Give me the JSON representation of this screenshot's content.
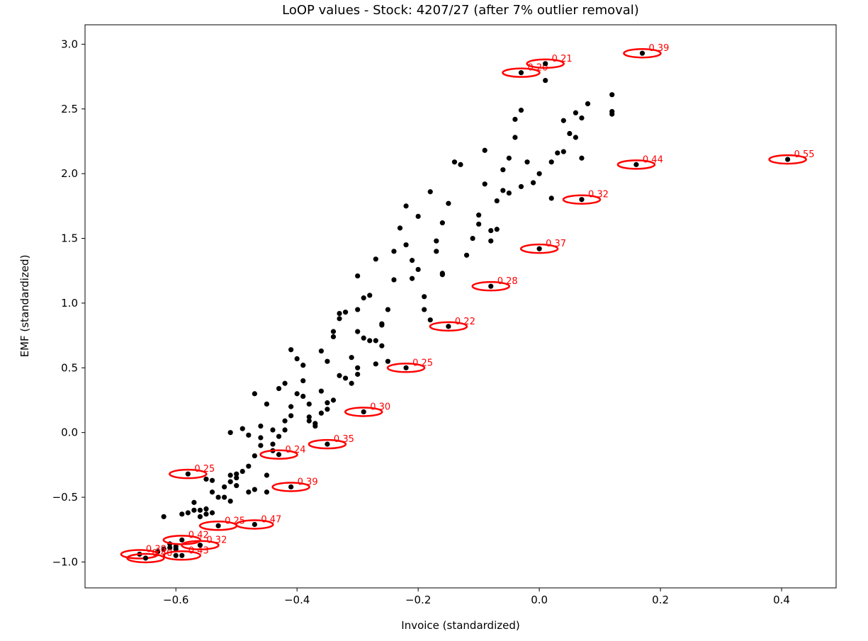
{
  "colors": {
    "points": "#000000",
    "outlier_ring": "#ff0000",
    "outlier_label": "#ff0000"
  },
  "chart_data": {
    "type": "scatter",
    "title": "LoOP values - Stock: 4207/27 (after 7% outlier removal)",
    "xlabel": "Invoice (standardized)",
    "ylabel": "EMF (standardized)",
    "xlim": [
      -0.75,
      0.49
    ],
    "ylim": [
      -1.2,
      3.15
    ],
    "xticks": [
      -0.6,
      -0.4,
      -0.2,
      0.0,
      0.2,
      0.4
    ],
    "xtick_labels": [
      "−0.6",
      "−0.4",
      "−0.2",
      "0.0",
      "0.2",
      "0.4"
    ],
    "yticks": [
      -1.0,
      -0.5,
      0.0,
      0.5,
      1.0,
      1.5,
      2.0,
      2.5,
      3.0
    ],
    "ytick_labels": [
      "−1.0",
      "−0.5",
      "0.0",
      "0.5",
      "1.0",
      "1.5",
      "2.0",
      "2.5",
      "3.0"
    ],
    "grid": false,
    "points": [
      [
        -0.62,
        -0.65
      ],
      [
        -0.61,
        -0.86
      ],
      [
        -0.6,
        -0.9
      ],
      [
        -0.6,
        -0.88
      ],
      [
        -0.59,
        -0.63
      ],
      [
        -0.58,
        -0.62
      ],
      [
        -0.57,
        -0.6
      ],
      [
        -0.57,
        -0.54
      ],
      [
        -0.56,
        -0.6
      ],
      [
        -0.56,
        -0.65
      ],
      [
        -0.55,
        -0.63
      ],
      [
        -0.55,
        -0.59
      ],
      [
        -0.54,
        -0.62
      ],
      [
        -0.55,
        -0.36
      ],
      [
        -0.54,
        -0.46
      ],
      [
        -0.54,
        -0.37
      ],
      [
        -0.53,
        -0.5
      ],
      [
        -0.52,
        -0.42
      ],
      [
        -0.52,
        -0.5
      ],
      [
        -0.51,
        -0.53
      ],
      [
        -0.51,
        -0.38
      ],
      [
        -0.51,
        -0.33
      ],
      [
        -0.5,
        -0.35
      ],
      [
        -0.5,
        -0.41
      ],
      [
        -0.5,
        -0.32
      ],
      [
        -0.49,
        -0.3
      ],
      [
        -0.48,
        -0.46
      ],
      [
        -0.48,
        -0.26
      ],
      [
        -0.47,
        -0.44
      ],
      [
        -0.47,
        -0.18
      ],
      [
        -0.46,
        -0.04
      ],
      [
        -0.46,
        -0.1
      ],
      [
        -0.45,
        -0.46
      ],
      [
        -0.45,
        -0.33
      ],
      [
        -0.44,
        -0.14
      ],
      [
        -0.44,
        -0.09
      ],
      [
        -0.43,
        -0.03
      ],
      [
        -0.42,
        0.09
      ],
      [
        -0.42,
        0.02
      ],
      [
        -0.41,
        0.13
      ],
      [
        -0.41,
        0.2
      ],
      [
        -0.4,
        0.3
      ],
      [
        -0.39,
        0.4
      ],
      [
        -0.39,
        0.28
      ],
      [
        -0.38,
        0.22
      ],
      [
        -0.38,
        0.12
      ],
      [
        -0.37,
        0.05
      ],
      [
        -0.36,
        0.15
      ],
      [
        -0.35,
        0.18
      ],
      [
        -0.51,
        0.0
      ],
      [
        -0.49,
        0.03
      ],
      [
        -0.48,
        -0.02
      ],
      [
        -0.47,
        0.3
      ],
      [
        -0.46,
        0.05
      ],
      [
        -0.45,
        0.22
      ],
      [
        -0.44,
        0.02
      ],
      [
        -0.43,
        0.34
      ],
      [
        -0.42,
        0.38
      ],
      [
        -0.41,
        0.64
      ],
      [
        -0.4,
        0.57
      ],
      [
        -0.39,
        0.52
      ],
      [
        -0.38,
        0.09
      ],
      [
        -0.37,
        0.07
      ],
      [
        -0.36,
        0.63
      ],
      [
        -0.35,
        0.55
      ],
      [
        -0.34,
        0.74
      ],
      [
        -0.34,
        0.78
      ],
      [
        -0.33,
        0.88
      ],
      [
        -0.33,
        0.92
      ],
      [
        -0.32,
        0.93
      ],
      [
        -0.31,
        0.58
      ],
      [
        -0.3,
        0.5
      ],
      [
        -0.3,
        0.45
      ],
      [
        -0.31,
        0.38
      ],
      [
        -0.32,
        0.42
      ],
      [
        -0.3,
        1.21
      ],
      [
        -0.3,
        0.95
      ],
      [
        -0.29,
        1.04
      ],
      [
        -0.28,
        1.06
      ],
      [
        -0.28,
        0.71
      ],
      [
        -0.27,
        0.71
      ],
      [
        -0.27,
        1.34
      ],
      [
        -0.26,
        0.84
      ],
      [
        -0.26,
        0.83
      ],
      [
        -0.25,
        0.95
      ],
      [
        -0.24,
        1.18
      ],
      [
        -0.24,
        1.4
      ],
      [
        -0.23,
        1.58
      ],
      [
        -0.22,
        1.45
      ],
      [
        -0.22,
        1.75
      ],
      [
        -0.21,
        1.33
      ],
      [
        -0.21,
        1.19
      ],
      [
        -0.2,
        1.26
      ],
      [
        -0.2,
        1.67
      ],
      [
        -0.19,
        0.95
      ],
      [
        -0.19,
        1.05
      ],
      [
        -0.18,
        0.87
      ],
      [
        -0.18,
        1.86
      ],
      [
        -0.17,
        1.4
      ],
      [
        -0.17,
        1.48
      ],
      [
        -0.16,
        1.23
      ],
      [
        -0.16,
        1.22
      ],
      [
        -0.16,
        1.62
      ],
      [
        -0.15,
        1.77
      ],
      [
        -0.14,
        2.09
      ],
      [
        -0.13,
        2.07
      ],
      [
        -0.12,
        1.37
      ],
      [
        -0.11,
        1.5
      ],
      [
        -0.1,
        1.61
      ],
      [
        -0.1,
        1.68
      ],
      [
        -0.09,
        1.92
      ],
      [
        -0.09,
        2.18
      ],
      [
        -0.08,
        1.48
      ],
      [
        -0.08,
        1.56
      ],
      [
        -0.07,
        1.57
      ],
      [
        -0.07,
        1.79
      ],
      [
        -0.06,
        1.87
      ],
      [
        -0.06,
        2.03
      ],
      [
        -0.05,
        2.12
      ],
      [
        -0.05,
        1.85
      ],
      [
        -0.04,
        2.28
      ],
      [
        -0.04,
        2.42
      ],
      [
        -0.03,
        1.9
      ],
      [
        -0.03,
        2.49
      ],
      [
        -0.02,
        2.09
      ],
      [
        -0.01,
        1.93
      ],
      [
        0.0,
        2.0
      ],
      [
        0.01,
        2.72
      ],
      [
        0.02,
        1.81
      ],
      [
        0.02,
        2.09
      ],
      [
        0.03,
        2.16
      ],
      [
        0.04,
        2.41
      ],
      [
        0.04,
        2.17
      ],
      [
        0.05,
        2.31
      ],
      [
        0.06,
        2.47
      ],
      [
        0.06,
        2.28
      ],
      [
        0.07,
        2.43
      ],
      [
        0.07,
        2.12
      ],
      [
        0.08,
        2.54
      ],
      [
        0.12,
        2.46
      ],
      [
        0.12,
        2.48
      ],
      [
        0.12,
        2.61
      ],
      [
        -0.3,
        0.78
      ],
      [
        -0.29,
        0.73
      ],
      [
        -0.26,
        0.67
      ],
      [
        -0.25,
        0.55
      ],
      [
        -0.27,
        0.53
      ],
      [
        -0.33,
        0.44
      ],
      [
        -0.34,
        0.25
      ],
      [
        -0.35,
        0.23
      ],
      [
        -0.36,
        0.32
      ],
      [
        -0.61,
        -0.89
      ],
      [
        -0.62,
        -0.9
      ],
      [
        -0.6,
        -0.95
      ],
      [
        -0.63,
        -0.92
      ]
    ],
    "outliers": [
      {
        "x": -0.66,
        "y": -0.94,
        "loop": "0.38"
      },
      {
        "x": -0.65,
        "y": -0.97,
        "loop": "0.40"
      },
      {
        "x": -0.59,
        "y": -0.83,
        "loop": "0.42"
      },
      {
        "x": -0.59,
        "y": -0.95,
        "loop": "0.43"
      },
      {
        "x": -0.56,
        "y": -0.87,
        "loop": "0.32"
      },
      {
        "x": -0.53,
        "y": -0.72,
        "loop": "0.25"
      },
      {
        "x": -0.58,
        "y": -0.32,
        "loop": "0.25"
      },
      {
        "x": -0.47,
        "y": -0.71,
        "loop": "0.47"
      },
      {
        "x": -0.43,
        "y": -0.17,
        "loop": "0.24"
      },
      {
        "x": -0.41,
        "y": -0.42,
        "loop": "0.39"
      },
      {
        "x": -0.35,
        "y": -0.09,
        "loop": "0.35"
      },
      {
        "x": -0.29,
        "y": 0.16,
        "loop": "0.30"
      },
      {
        "x": -0.22,
        "y": 0.5,
        "loop": "0.25"
      },
      {
        "x": -0.15,
        "y": 0.82,
        "loop": "0.22"
      },
      {
        "x": -0.08,
        "y": 1.13,
        "loop": "0.28"
      },
      {
        "x": 0.0,
        "y": 1.42,
        "loop": "0.37"
      },
      {
        "x": 0.07,
        "y": 1.8,
        "loop": "0.32"
      },
      {
        "x": 0.16,
        "y": 2.07,
        "loop": "0.44"
      },
      {
        "x": 0.41,
        "y": 2.11,
        "loop": "0.55"
      },
      {
        "x": -0.03,
        "y": 2.78,
        "loop": "0.20"
      },
      {
        "x": 0.01,
        "y": 2.85,
        "loop": "0.21"
      },
      {
        "x": 0.17,
        "y": 2.93,
        "loop": "0.39"
      }
    ]
  }
}
